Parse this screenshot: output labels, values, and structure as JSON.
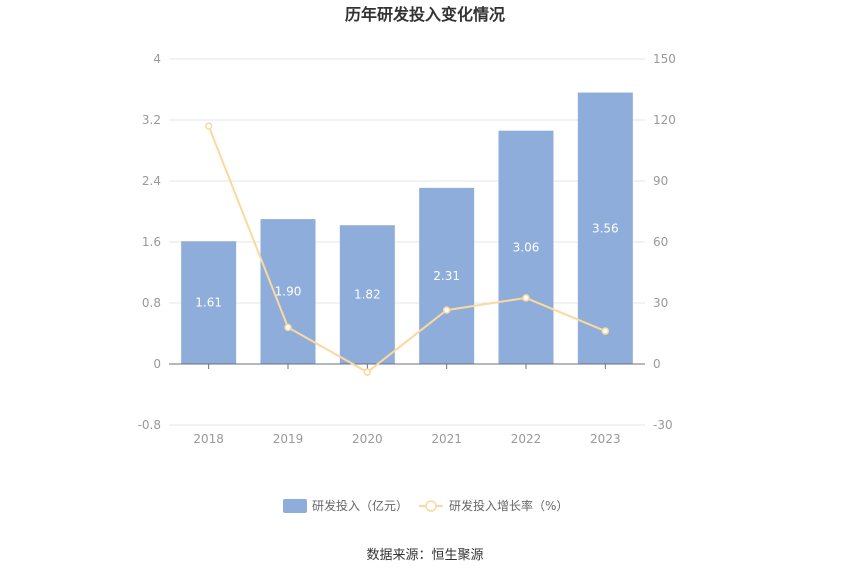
{
  "chart_data": {
    "type": "bar",
    "title": "历年研发投入变化情况",
    "categories": [
      "2018",
      "2019",
      "2020",
      "2021",
      "2022",
      "2023"
    ],
    "series": [
      {
        "name": "研发投入（亿元）",
        "type": "bar",
        "axis": "left",
        "color": "#8eaddb",
        "values": [
          1.61,
          1.9,
          1.82,
          2.31,
          3.06,
          3.56
        ],
        "labels": [
          "1.61",
          "1.90",
          "1.82",
          "2.31",
          "3.06",
          "3.56"
        ]
      },
      {
        "name": "研发投入增长率（%）",
        "type": "line",
        "axis": "right",
        "color": "#fbd89e",
        "values": [
          117,
          18,
          -4,
          26.5,
          32.5,
          16.2
        ]
      }
    ],
    "y_left": {
      "ylim": [
        -0.8,
        4
      ],
      "ticks": [
        "-0.8",
        "0",
        "0.8",
        "1.6",
        "2.4",
        "3.2",
        "4"
      ]
    },
    "y_right": {
      "ylim": [
        -30,
        150
      ],
      "ticks": [
        "-30",
        "0",
        "30",
        "60",
        "90",
        "120",
        "150"
      ]
    },
    "grid": true,
    "legend_position": "bottom"
  },
  "source": "数据来源：恒生聚源"
}
